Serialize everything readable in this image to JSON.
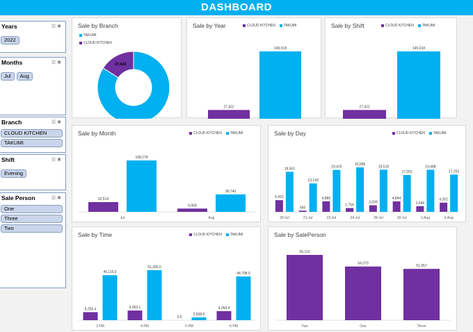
{
  "header": {
    "title": "DASHBOARD"
  },
  "colors": {
    "cloud_kitchen": "#7030a0",
    "takumi": "#00b0f0"
  },
  "slicers": {
    "years": {
      "title": "Years",
      "items": [
        "2022"
      ]
    },
    "months": {
      "title": "Months",
      "items": [
        "Jul",
        "Aug"
      ]
    },
    "branch": {
      "title": "Branch",
      "items": [
        "CLOUD KITCHEN",
        "TAKUMI"
      ]
    },
    "shift": {
      "title": "Shift",
      "items": [
        "Evening"
      ]
    },
    "sale_person": {
      "title": "Sale Person",
      "items": [
        "One",
        "Three",
        "Two"
      ]
    }
  },
  "cards": {
    "branch": {
      "title": "Sale by Branch"
    },
    "year": {
      "title": "Sale by Year"
    },
    "shift": {
      "title": "Sale by Shift"
    },
    "month": {
      "title": "Sale by Month"
    },
    "day": {
      "title": "Sale by Day"
    },
    "time": {
      "title": "Sale by Time"
    },
    "salesperson": {
      "title": "Sale by SalePerson"
    }
  },
  "legend": {
    "cloud_kitchen": "CLOUD KITCHEN",
    "takumi": "TAKUMI"
  },
  "chart_data": [
    {
      "id": "branch",
      "type": "pie",
      "title": "Sale by Branch",
      "categories": [
        "TAKUMI",
        "CLOUD KITCHEN"
      ],
      "values": [
        145018,
        27422
      ],
      "labels": [
        "145,018",
        "27,422"
      ]
    },
    {
      "id": "year",
      "type": "bar",
      "title": "Sale by Year",
      "categories": [
        "2022"
      ],
      "series": [
        {
          "name": "CLOUD KITCHEN",
          "values": [
            27422
          ],
          "labels": [
            "27,422"
          ]
        },
        {
          "name": "TAKUMI",
          "values": [
            145018
          ],
          "labels": [
            "145,018"
          ]
        }
      ]
    },
    {
      "id": "shift",
      "type": "bar",
      "title": "Sale by Shift",
      "categories": [
        "Evening"
      ],
      "series": [
        {
          "name": "CLOUD KITCHEN",
          "values": [
            27422
          ],
          "labels": [
            "27,422"
          ]
        },
        {
          "name": "TAKUMI",
          "values": [
            145018
          ],
          "labels": [
            "145,018"
          ]
        }
      ]
    },
    {
      "id": "month",
      "type": "bar",
      "title": "Sale by Month",
      "categories": [
        "Jul",
        "Aug"
      ],
      "series": [
        {
          "name": "CLOUD KITCHEN",
          "values": [
            20514,
            6908
          ],
          "labels": [
            "20,514",
            "6,908"
          ]
        },
        {
          "name": "TAKUMI",
          "values": [
            108278,
            36740
          ],
          "labels": [
            "108,278",
            "36,740"
          ]
        }
      ]
    },
    {
      "id": "day",
      "type": "bar",
      "title": "Sale by Day",
      "categories": [
        "20-Jul",
        "21-Jul",
        "23-Jul",
        "24-Jul",
        "28-Jul",
        "30-Jul",
        "1-Aug",
        "2-Aug"
      ],
      "series": [
        {
          "name": "CLOUD KITCHEN",
          "values": [
            5415,
            560,
            4880,
            1756,
            3039,
            4844,
            2646,
            4262
          ],
          "labels": [
            "5,415",
            "560",
            "4,880",
            "1,756",
            "3,039",
            "4,844",
            "2,646",
            "4,262"
          ]
        },
        {
          "name": "TAKUMI",
          "values": [
            18561,
            13143,
            19419,
            20585,
            19518,
            17052,
            19488,
            17252
          ],
          "labels": [
            "18,561",
            "13,143",
            "19,419",
            "20,585",
            "19,518",
            "17,052",
            "19,488",
            "17,252"
          ]
        }
      ]
    },
    {
      "id": "time",
      "type": "bar",
      "title": "Sale by Time",
      "categories": [
        "3 PM",
        "4 PM",
        "5 PM",
        "6 PM"
      ],
      "series": [
        {
          "name": "CLOUD KITCHEN",
          "values": [
            8255.4,
            9902.1,
            0,
            9264.4
          ],
          "labels": [
            "8,255.4",
            "9,902.1",
            "0.0",
            "9,264.4"
          ]
        },
        {
          "name": "TAKUMI",
          "values": [
            46115,
            51266,
            2838,
            44798
          ],
          "labels": [
            "46,115.0",
            "51,266.0",
            "2,838.0",
            "44,798.0"
          ]
        }
      ]
    },
    {
      "id": "salesperson",
      "type": "bar",
      "title": "Sale by SalePerson",
      "categories": [
        "Two",
        "One",
        "Three"
      ],
      "series": [
        {
          "name": "",
          "values": [
            66113,
            54370,
            51957
          ],
          "labels": [
            "66,113",
            "54,370",
            "51,957"
          ]
        }
      ]
    }
  ]
}
